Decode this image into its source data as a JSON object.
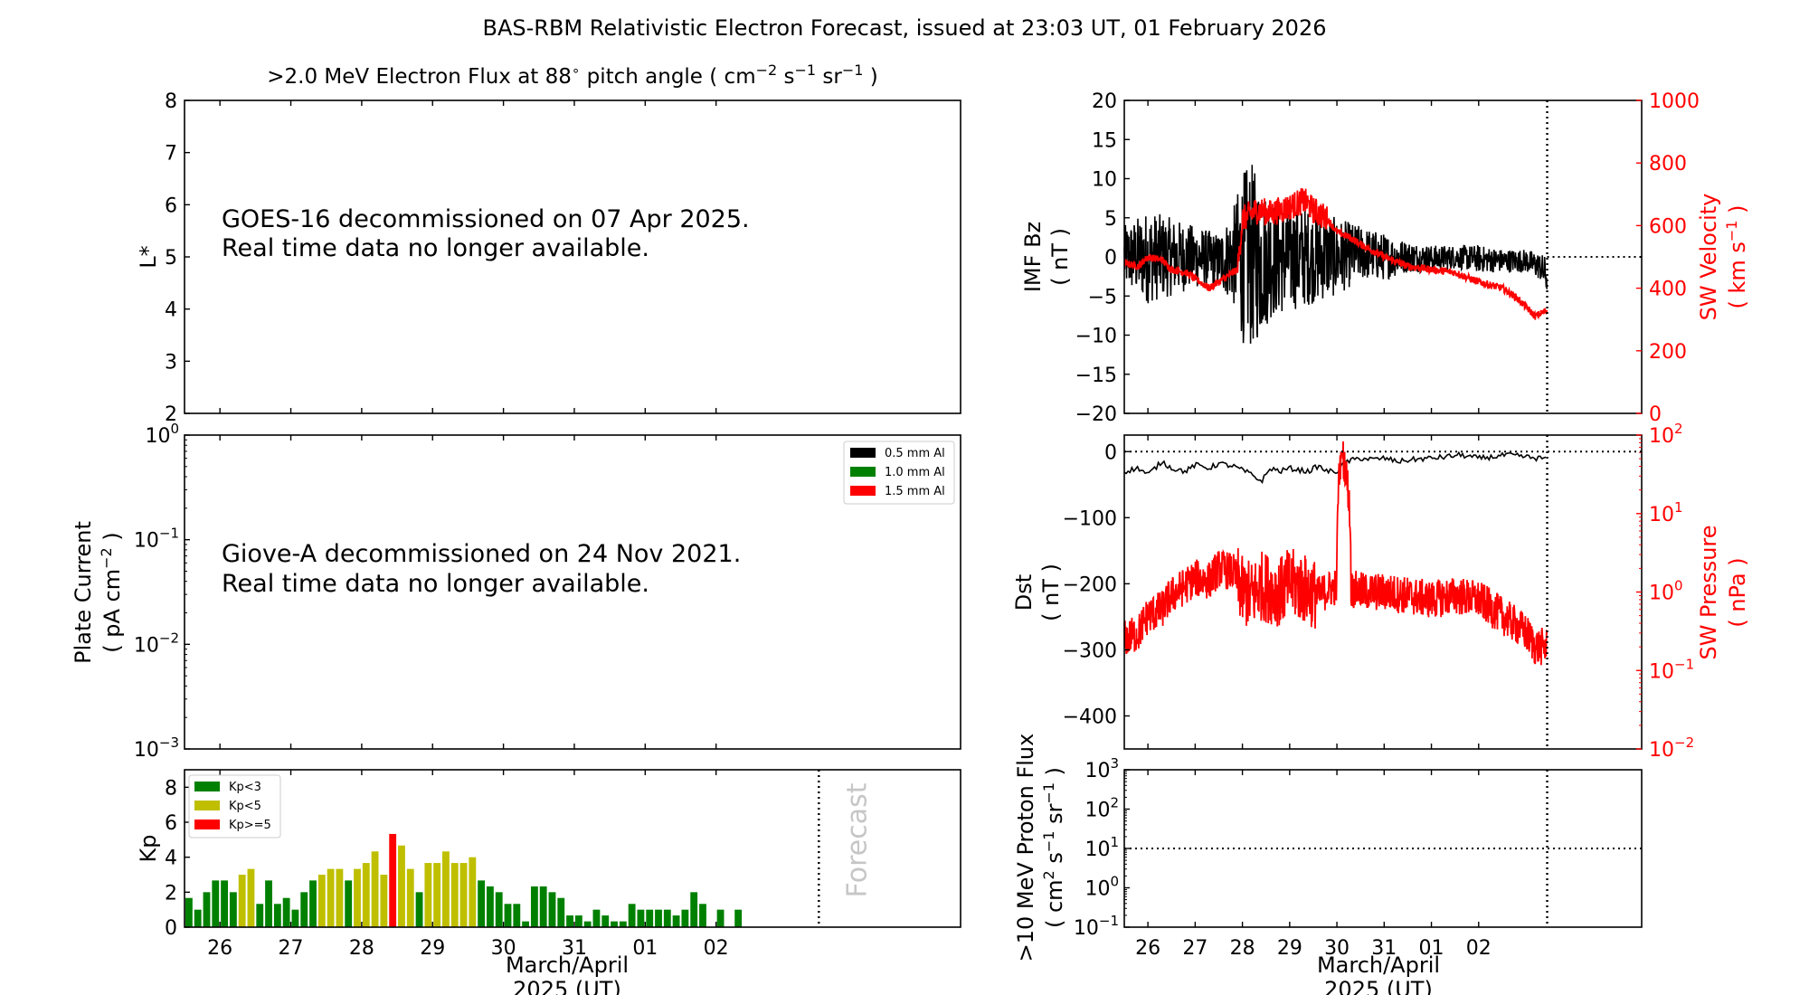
{
  "title": "BAS-RBM Relativistic Electron Forecast, issued at 23:03 UT, 01 February 2026",
  "colors": {
    "black": "#000000",
    "red": "#ff0000",
    "green": "#008000",
    "olive": "#bfbf00",
    "grey": "#bdbdbd"
  },
  "xaxis": {
    "day_ticks": [
      "26",
      "27",
      "28",
      "29",
      "30",
      "31",
      "01",
      "02"
    ],
    "label_line1": "March/April",
    "label_line2": "2025 (UT)",
    "range_days": [
      25.5,
      36.45
    ],
    "now_day": 34.45
  },
  "chart_data": [
    {
      "id": "electron-flux",
      "type": "line",
      "title_prefix": ">2.0 MeV Electron Flux at 88",
      "title_deg": "∘",
      "title_mid": " pitch angle ( cm",
      "title_exp1": "−2",
      "title_s": " s",
      "title_exp2": "−1",
      "title_sr": " sr",
      "title_exp3": "−1",
      "title_end": " )",
      "ylabel": "L*",
      "ylim": [
        2,
        8
      ],
      "yticks": [
        "2",
        "3",
        "4",
        "5",
        "6",
        "7",
        "8"
      ],
      "message_line1": "GOES-16 decommissioned on 07 Apr 2025.",
      "message_line2": "Real time data no longer available."
    },
    {
      "id": "plate-current",
      "type": "line",
      "ylabel_line1": "Plate Current",
      "ylabel_line2a": "( pA cm",
      "ylabel_line2_exp": "−2",
      "ylabel_line2b": " )",
      "yscale": "log",
      "ylim": [
        0.001,
        1
      ],
      "yticks": [
        {
          "base": "10",
          "exp": "0"
        },
        {
          "base": "10",
          "exp": "−1"
        },
        {
          "base": "10",
          "exp": "−2"
        },
        {
          "base": "10",
          "exp": "−3"
        }
      ],
      "legend": [
        {
          "label": "0.5 mm Al",
          "color": "#000000"
        },
        {
          "label": "1.0 mm Al",
          "color": "#008000"
        },
        {
          "label": "1.5 mm Al",
          "color": "#ff0000"
        }
      ],
      "message_line1": "Giove-A decommissioned on 24 Nov 2021.",
      "message_line2": "Real time data no longer available."
    },
    {
      "id": "kp",
      "type": "bar",
      "ylabel": "Kp",
      "ylim": [
        0,
        9
      ],
      "yticks": [
        "0",
        "2",
        "4",
        "6",
        "8"
      ],
      "forecast_label": "Forecast",
      "legend": [
        {
          "label": "Kp<3",
          "color": "#008000"
        },
        {
          "label": "Kp<5",
          "color": "#bfbf00"
        },
        {
          "label": "Kp>=5",
          "color": "#ff0000"
        }
      ],
      "bar_width_days": 0.1,
      "bars": [
        [
          25.5625,
          1.67
        ],
        [
          25.6875,
          1
        ],
        [
          25.8125,
          2
        ],
        [
          25.9375,
          2.67
        ],
        [
          26.0625,
          2.67
        ],
        [
          26.1875,
          2
        ],
        [
          26.3125,
          3
        ],
        [
          26.4375,
          3.33
        ],
        [
          26.5625,
          1.33
        ],
        [
          26.6875,
          2.67
        ],
        [
          26.8125,
          1.33
        ],
        [
          26.9375,
          1.67
        ],
        [
          27.0625,
          1
        ],
        [
          27.1875,
          2
        ],
        [
          27.3125,
          2.67
        ],
        [
          27.4375,
          3
        ],
        [
          27.5625,
          3.33
        ],
        [
          27.6875,
          3.33
        ],
        [
          27.8125,
          2.67
        ],
        [
          27.9375,
          3.33
        ],
        [
          28.0625,
          3.67
        ],
        [
          28.1875,
          4.33
        ],
        [
          28.3125,
          3
        ],
        [
          28.4375,
          5.33
        ],
        [
          28.5625,
          4.67
        ],
        [
          28.6875,
          3.33
        ],
        [
          28.8125,
          2
        ],
        [
          28.9375,
          3.67
        ],
        [
          29.0625,
          3.67
        ],
        [
          29.1875,
          4.33
        ],
        [
          29.3125,
          3.67
        ],
        [
          29.4375,
          3.67
        ],
        [
          29.5625,
          4
        ],
        [
          29.6875,
          2.67
        ],
        [
          29.8125,
          2.33
        ],
        [
          29.9375,
          2
        ],
        [
          30.0625,
          1.33
        ],
        [
          30.1875,
          1.33
        ],
        [
          30.3125,
          0.33
        ],
        [
          30.4375,
          2.33
        ],
        [
          30.5625,
          2.33
        ],
        [
          30.6875,
          2
        ],
        [
          30.8125,
          1.67
        ],
        [
          30.9375,
          0.67
        ],
        [
          31.0625,
          0.67
        ],
        [
          31.1875,
          0.33
        ],
        [
          31.3125,
          1
        ],
        [
          31.4375,
          0.67
        ],
        [
          31.5625,
          0.33
        ],
        [
          31.6875,
          0.33
        ],
        [
          31.8125,
          1.33
        ],
        [
          31.9375,
          1
        ],
        [
          32.0625,
          1
        ],
        [
          32.1875,
          1
        ],
        [
          32.3125,
          1
        ],
        [
          32.4375,
          0.67
        ],
        [
          32.5625,
          1
        ],
        [
          32.6875,
          2
        ],
        [
          32.8125,
          1.33
        ],
        [
          33.0625,
          1
        ],
        [
          33.3125,
          1
        ]
      ]
    },
    {
      "id": "imf-bz-sw-velocity",
      "type": "line",
      "ylabel_left_line1": "IMF Bz",
      "ylabel_left_line2": "( nT )",
      "ylim_left": [
        -20,
        20
      ],
      "yticks_left": [
        "−20",
        "−15",
        "−10",
        "−5",
        "0",
        "5",
        "10",
        "15",
        "20"
      ],
      "ylabel_right_line1": "SW Velocity",
      "ylabel_right_line2a": "( km s",
      "ylabel_right_exp": "−1",
      "ylabel_right_line2b": " )",
      "ylim_right": [
        0,
        1000
      ],
      "yticks_right": [
        "0",
        "200",
        "400",
        "600",
        "800",
        "1000"
      ],
      "series": [
        {
          "name": "IMF Bz",
          "color": "#000000",
          "axis": "left",
          "envelope_x": [
            25.5,
            26.0,
            26.5,
            27.0,
            27.5,
            27.8,
            28.0,
            28.2,
            28.4,
            28.6,
            29.0,
            29.5,
            30.0,
            30.5,
            31.0,
            31.5,
            32.0,
            32.5,
            33.0,
            33.5,
            34.0,
            34.3,
            34.45
          ],
          "envelope_hi": [
            4,
            6,
            5,
            4,
            3,
            6,
            11,
            12,
            9,
            8,
            7,
            6,
            5,
            4,
            3,
            2,
            1.5,
            1.5,
            1.5,
            1,
            1,
            0.5,
            0
          ],
          "envelope_lo": [
            -4,
            -6,
            -5,
            -4,
            -4,
            -6,
            -11,
            -12,
            -10,
            -8,
            -7,
            -6,
            -5,
            -3,
            -3,
            -2,
            -2,
            -1.5,
            -2,
            -2,
            -2,
            -3,
            -5
          ]
        },
        {
          "name": "SW Velocity",
          "color": "#ff0000",
          "axis": "right",
          "x": [
            25.5,
            25.8,
            26.0,
            26.3,
            26.5,
            26.8,
            27.0,
            27.3,
            27.5,
            27.8,
            27.9,
            28.0,
            28.3,
            28.6,
            29.0,
            29.3,
            29.5,
            29.8,
            30.0,
            30.3,
            30.5,
            31.0,
            31.5,
            32.0,
            32.5,
            33.0,
            33.5,
            33.8,
            34.0,
            34.2,
            34.45
          ],
          "y": [
            480,
            470,
            500,
            490,
            460,
            450,
            430,
            400,
            420,
            450,
            460,
            620,
            650,
            640,
            660,
            680,
            650,
            620,
            580,
            560,
            540,
            500,
            470,
            460,
            450,
            420,
            400,
            370,
            340,
            310,
            330
          ],
          "noise": 40
        }
      ]
    },
    {
      "id": "dst-sw-pressure",
      "type": "line",
      "ylabel_left_line1": "Dst",
      "ylabel_left_line2": "( nT )",
      "ylim_left": [
        -450,
        25
      ],
      "yticks_left": [
        "0",
        "−100",
        "−200",
        "−300",
        "−400"
      ],
      "ylabel_right_line1": "SW Pressure",
      "ylabel_right_line2": "( nPa )",
      "ylim_right": [
        0.01,
        100
      ],
      "yticks_right": [
        {
          "base": "10",
          "exp": "2"
        },
        {
          "base": "10",
          "exp": "1"
        },
        {
          "base": "10",
          "exp": "0"
        },
        {
          "base": "10",
          "exp": "−1"
        },
        {
          "base": "10",
          "exp": "−2"
        }
      ],
      "series": [
        {
          "name": "Dst",
          "color": "#000000",
          "axis": "left",
          "x": [
            25.5,
            25.8,
            26.0,
            26.3,
            26.5,
            26.8,
            27.0,
            27.3,
            27.5,
            27.8,
            28.0,
            28.2,
            28.4,
            28.6,
            28.8,
            29.0,
            29.2,
            29.4,
            29.6,
            29.8,
            30.0,
            30.2,
            30.5,
            30.8,
            31.0,
            31.3,
            31.6,
            32.0,
            32.3,
            32.6,
            33.0,
            33.3,
            33.6,
            34.0,
            34.2,
            34.45
          ],
          "y": [
            -30,
            -25,
            -35,
            -15,
            -25,
            -30,
            -20,
            -25,
            -18,
            -22,
            -28,
            -35,
            -45,
            -25,
            -30,
            -25,
            -28,
            -30,
            -22,
            -30,
            -30,
            -15,
            -10,
            -12,
            -10,
            -15,
            -12,
            -10,
            -8,
            -5,
            -10,
            -8,
            -5,
            -8,
            -10,
            -10
          ]
        },
        {
          "name": "SW Pressure",
          "color": "#ff0000",
          "axis": "right",
          "x": [
            25.5,
            25.8,
            26.0,
            26.3,
            26.5,
            26.8,
            27.0,
            27.3,
            27.5,
            27.8,
            28.0,
            28.2,
            28.4,
            28.6,
            28.8,
            29.0,
            29.3,
            29.6,
            30.0,
            30.1,
            30.3,
            30.6,
            31.0,
            31.5,
            32.0,
            32.5,
            33.0,
            33.3,
            33.6,
            34.0,
            34.2,
            34.45
          ],
          "y": [
            0.25,
            0.3,
            0.5,
            0.6,
            0.9,
            1.2,
            1.5,
            1.4,
            2.0,
            1.8,
            1.0,
            0.9,
            1.2,
            1.1,
            1.0,
            1.3,
            1.1,
            0.9,
            1.2,
            60,
            1.1,
            1.0,
            1.0,
            0.9,
            0.8,
            0.9,
            0.8,
            0.6,
            0.45,
            0.3,
            0.2,
            0.2
          ],
          "noise_log": 0.35
        }
      ]
    },
    {
      "id": "proton-flux",
      "type": "line",
      "ylabel_line1": ">10 MeV Proton Flux",
      "ylabel_line2a": "( cm",
      "ylabel_line2_exp1": "2",
      "ylabel_line2_s": " s",
      "ylabel_line2_exp2": "−1",
      "ylabel_line2_sr": " sr",
      "ylabel_line2_exp3": "−1",
      "ylabel_line2b": " )",
      "yscale": "log",
      "ylim": [
        0.1,
        1000
      ],
      "yticks": [
        {
          "base": "10",
          "exp": "3"
        },
        {
          "base": "10",
          "exp": "2"
        },
        {
          "base": "10",
          "exp": "1"
        },
        {
          "base": "10",
          "exp": "0"
        },
        {
          "base": "10",
          "exp": "−1"
        }
      ],
      "threshold": 10
    }
  ]
}
